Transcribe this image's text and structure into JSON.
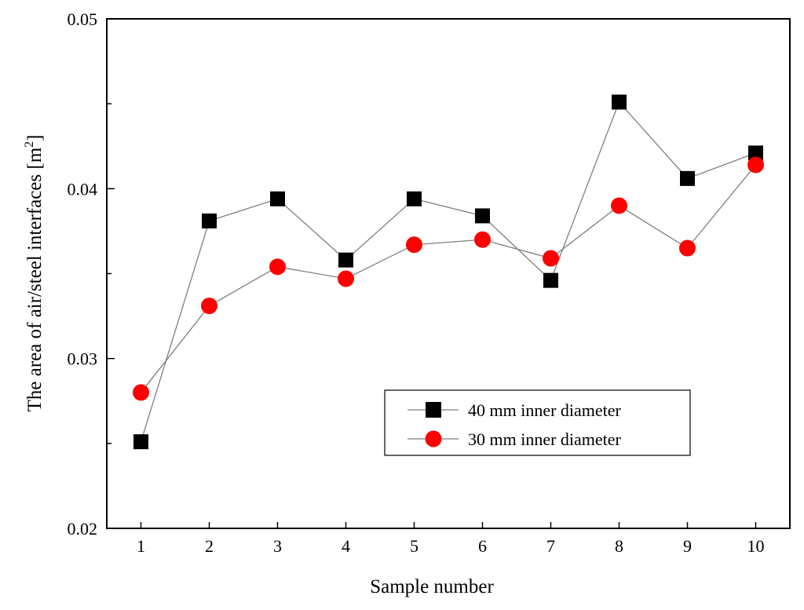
{
  "chart_data": {
    "type": "line",
    "title": "",
    "xlabel": "Sample number",
    "ylabel": "The area of air/steel interfaces [m",
    "ylabel_superscript": "2",
    "ylabel_close": "]",
    "x": [
      1,
      2,
      3,
      4,
      5,
      6,
      7,
      8,
      9,
      10
    ],
    "x_tick_labels": [
      "1",
      "2",
      "3",
      "4",
      "5",
      "6",
      "7",
      "8",
      "9",
      "10"
    ],
    "xlim": [
      0.5,
      10.5
    ],
    "ylim": [
      0.02,
      0.05
    ],
    "y_major_ticks": [
      0.02,
      0.03,
      0.04,
      0.05
    ],
    "y_tick_labels": [
      "0.02",
      "0.03",
      "0.04",
      "0.05"
    ],
    "y_minor_ticks": [
      0.025,
      0.035,
      0.045
    ],
    "grid": false,
    "legend_position": "lower-right",
    "series": [
      {
        "name": "40 mm inner diameter",
        "marker": "square",
        "marker_color": "#000000",
        "line_color": "#7f7f7f",
        "values": [
          0.0251,
          0.0381,
          0.0394,
          0.0358,
          0.0394,
          0.0384,
          0.0346,
          0.0451,
          0.0406,
          0.0421
        ]
      },
      {
        "name": "30 mm inner diameter",
        "marker": "circle",
        "marker_color": "#ff0000",
        "line_color": "#7f7f7f",
        "values": [
          0.028,
          0.0331,
          0.0354,
          0.0347,
          0.0367,
          0.037,
          0.0359,
          0.039,
          0.0365,
          0.0414
        ]
      }
    ]
  }
}
